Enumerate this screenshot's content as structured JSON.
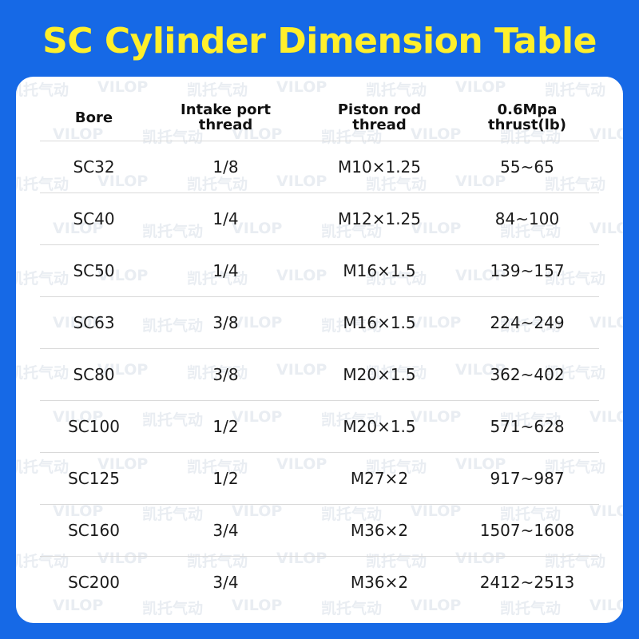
{
  "title": "SC Cylinder Dimension Table",
  "watermark": {
    "cn": "凯托气动",
    "brand": "VILOP"
  },
  "table": {
    "headers": [
      {
        "line1": "Bore",
        "line2": ""
      },
      {
        "line1": "Intake port",
        "line2": "thread"
      },
      {
        "line1": "Piston rod",
        "line2": "thread"
      },
      {
        "line1": "0.6Mpa",
        "line2": "thrust(lb)"
      }
    ],
    "rows": [
      [
        "SC32",
        "1/8",
        "M10×1.25",
        "55~65"
      ],
      [
        "SC40",
        "1/4",
        "M12×1.25",
        "84~100"
      ],
      [
        "SC50",
        "1/4",
        "M16×1.5",
        "139~157"
      ],
      [
        "SC63",
        "3/8",
        "M16×1.5",
        "224~249"
      ],
      [
        "SC80",
        "3/8",
        "M20×1.5",
        "362~402"
      ],
      [
        "SC100",
        "1/2",
        "M20×1.5",
        "571~628"
      ],
      [
        "SC125",
        "1/2",
        "M27×2",
        "917~987"
      ],
      [
        "SC160",
        "3/4",
        "M36×2",
        "1507~1608"
      ],
      [
        "SC200",
        "3/4",
        "M36×2",
        "2412~2513"
      ]
    ]
  }
}
